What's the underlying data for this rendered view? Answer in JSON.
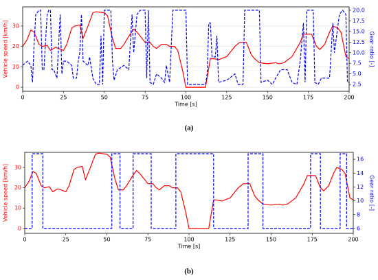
{
  "chart_data": [
    {
      "type": "line",
      "caption": "(a)",
      "xlabel": "Time [s]",
      "ylabel": "Vehicle speed [km/h]",
      "y2label": "Gear ratio [-]",
      "xlim": [
        0,
        200
      ],
      "xticks": [
        0,
        25,
        50,
        75,
        100,
        125,
        150,
        175,
        200
      ],
      "ylim": [
        -2,
        39.4
      ],
      "yticks": [
        0,
        10,
        20,
        30
      ],
      "y2lim": [
        0.9,
        20.8
      ],
      "y2ticks": [
        2.5,
        {
          "value": 5,
          "label": "5.0"
        },
        7.5,
        {
          "value": 10,
          "label": "10.0"
        },
        12.5,
        {
          "value": 15,
          "label": "15.0"
        },
        17.5,
        {
          "value": 20,
          "label": "20.0"
        }
      ],
      "grid": true,
      "series": [
        {
          "color": "#ff0000",
          "dashed": false,
          "x": [
            0,
            2.5,
            5,
            7,
            10,
            12,
            15,
            17,
            20,
            22,
            25,
            27,
            30,
            32,
            35,
            37,
            40,
            43,
            45,
            50,
            52,
            55,
            57,
            60,
            62,
            65,
            68,
            70,
            72,
            75,
            78,
            80,
            82,
            85,
            88,
            90,
            93,
            95,
            98,
            100,
            110,
            112,
            115,
            117,
            120,
            125,
            130,
            133,
            137,
            140,
            142,
            145,
            150,
            155,
            157,
            160,
            165,
            170,
            172,
            175,
            177,
            180,
            182,
            185,
            188,
            190,
            193,
            195,
            198,
            200
          ],
          "values": [
            20,
            23,
            28,
            27,
            21,
            20,
            20.5,
            18,
            19.5,
            19,
            18,
            21,
            29,
            30,
            30.5,
            24,
            30,
            36.5,
            37,
            36.5,
            35,
            24,
            19,
            19,
            21,
            25,
            28.5,
            27,
            25,
            22,
            22,
            20,
            19,
            21,
            21,
            20,
            20,
            18,
            8,
            0,
            0,
            0,
            14,
            14,
            13.5,
            15,
            20,
            22,
            22,
            16,
            14,
            12,
            11.5,
            12,
            11.5,
            12,
            15,
            22,
            26,
            26,
            26,
            20,
            18.5,
            21,
            27,
            30,
            29,
            27,
            15,
            14
          ]
        },
        {
          "color": "#0000ff",
          "dashed": true,
          "axis": "y2",
          "x": [
            0,
            3,
            5,
            6,
            7,
            8,
            10,
            11,
            12,
            13,
            15,
            16,
            17,
            18,
            19,
            21,
            22,
            23,
            24,
            25,
            27,
            30,
            31,
            33,
            34,
            35,
            36,
            37,
            40,
            41,
            43,
            45,
            47,
            48,
            49,
            50,
            53,
            54,
            55,
            56,
            58,
            62,
            65,
            67,
            68,
            70,
            72,
            75,
            76,
            77,
            78,
            80,
            82,
            85,
            87,
            88,
            90,
            92,
            100,
            101,
            112,
            113,
            114,
            115,
            116,
            118,
            119,
            120,
            125,
            130,
            132,
            135,
            136,
            145,
            146,
            150,
            153,
            155,
            158,
            162,
            165,
            168,
            170,
            172,
            173,
            174,
            178,
            179,
            181,
            183,
            186,
            188,
            190,
            191,
            194,
            196,
            198,
            199,
            200
          ],
          "values": [
            7,
            8,
            7,
            3,
            12,
            19,
            20,
            20,
            6,
            6,
            19,
            20,
            20,
            6,
            6,
            4,
            12,
            19,
            5,
            8,
            8,
            7,
            4,
            4,
            8,
            10,
            19,
            8,
            7,
            9,
            4,
            2.5,
            2.5,
            14,
            2.5,
            20,
            20,
            20,
            8,
            3.5,
            6,
            7,
            6,
            19,
            10,
            19,
            20,
            20,
            4,
            20,
            3,
            2.5,
            5,
            4,
            3,
            7,
            3,
            20,
            20,
            2.5,
            2.5,
            5,
            17,
            17,
            9,
            9,
            14,
            3,
            3.5,
            5,
            2.5,
            2.5,
            20,
            20,
            3,
            3.5,
            2.5,
            4,
            6,
            6,
            3,
            2.5,
            8,
            17,
            3,
            20,
            20,
            3,
            2.5,
            4,
            4,
            4,
            17,
            10,
            19,
            20,
            19,
            3,
            3
          ]
        }
      ]
    },
    {
      "type": "line",
      "caption": "(b)",
      "xlabel": "Time [s]",
      "ylabel": "Vehicle speed [km/h]",
      "y2label": "Gear ratio [-]",
      "xlim": [
        0,
        200
      ],
      "xticks": [
        0,
        25,
        50,
        75,
        100,
        125,
        150,
        175,
        200
      ],
      "ylim": [
        -2.4,
        37.4
      ],
      "yticks": [
        0,
        10,
        20,
        30
      ],
      "y2lim": [
        5.3,
        17
      ],
      "y2ticks": [
        6,
        8,
        10,
        12,
        14,
        16
      ],
      "grid": false,
      "series": [
        {
          "color": "#ff0000",
          "dashed": false,
          "x": [
            0,
            2.5,
            5,
            7,
            10,
            12,
            15,
            17,
            20,
            22,
            25,
            27,
            30,
            32,
            35,
            37,
            40,
            43,
            45,
            50,
            52,
            55,
            57,
            60,
            62,
            65,
            68,
            70,
            72,
            75,
            78,
            80,
            82,
            85,
            88,
            90,
            93,
            95,
            98,
            100,
            110,
            112,
            115,
            117,
            120,
            125,
            130,
            133,
            137,
            140,
            142,
            145,
            150,
            155,
            157,
            160,
            165,
            170,
            172,
            175,
            177,
            180,
            182,
            185,
            188,
            190,
            193,
            195,
            198,
            200
          ],
          "values": [
            20,
            23,
            28,
            27,
            21,
            20,
            20.5,
            18,
            19.5,
            19,
            18,
            21,
            29,
            30,
            30.5,
            24,
            30,
            36.5,
            37,
            36.5,
            35,
            24,
            19,
            19,
            21,
            25,
            28.5,
            27,
            25,
            22,
            22,
            20,
            19,
            21,
            21,
            20,
            20,
            18,
            8,
            0,
            0,
            0,
            14,
            14,
            13.5,
            15,
            20,
            22,
            22,
            16,
            14,
            12,
            11.5,
            12,
            11.5,
            12,
            15,
            22,
            26,
            26,
            26,
            20,
            18.5,
            21,
            27,
            30,
            29,
            27,
            15,
            14
          ]
        },
        {
          "color": "#0000ff",
          "dashed": true,
          "axis": "y2",
          "x": [
            0,
            4.5,
            4.5,
            11,
            11,
            53,
            53,
            58,
            58,
            66,
            66,
            77,
            77,
            92,
            92,
            115,
            115,
            136,
            136,
            145,
            145,
            174,
            174,
            180,
            180,
            192,
            192,
            196,
            196,
            200
          ],
          "values": [
            6,
            6,
            16.8,
            16.8,
            6,
            6,
            16.8,
            16.8,
            6,
            6,
            16.8,
            16.8,
            6,
            6,
            16.8,
            16.8,
            6,
            6,
            16.8,
            16.8,
            6,
            6,
            16.8,
            16.8,
            6,
            6,
            16.8,
            16.8,
            6,
            6
          ]
        }
      ]
    }
  ]
}
